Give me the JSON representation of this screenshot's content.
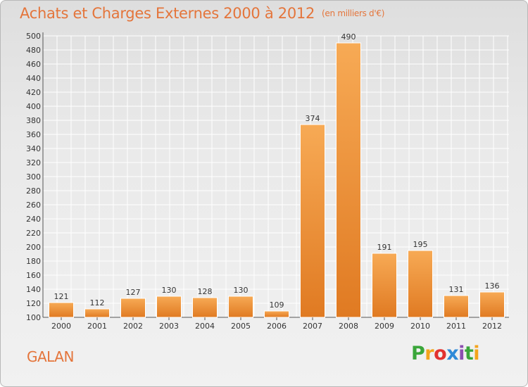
{
  "header": {
    "title": "Achats et Charges Externes 2000 à 2012",
    "unit": "(en milliers d'€)"
  },
  "commune": "GALAN",
  "logo": {
    "text": "Proxiti"
  },
  "colors": {
    "title": "#e4753b",
    "bar_light": "#f7aa55",
    "bar_dark": "#e07a22",
    "grid": "#ffffff"
  },
  "chart_data": {
    "type": "bar",
    "title": "Achats et Charges Externes 2000 à 2012",
    "subtitle": "(en milliers d'€)",
    "xlabel": "",
    "ylabel": "",
    "categories": [
      "2000",
      "2001",
      "2002",
      "2003",
      "2004",
      "2005",
      "2006",
      "2007",
      "2008",
      "2009",
      "2010",
      "2011",
      "2012"
    ],
    "values": [
      121,
      112,
      127,
      130,
      128,
      130,
      109,
      374,
      490,
      191,
      195,
      131,
      136
    ],
    "ylim": [
      100,
      500
    ],
    "ytick_step": 20,
    "grid": true,
    "legend": "none"
  }
}
